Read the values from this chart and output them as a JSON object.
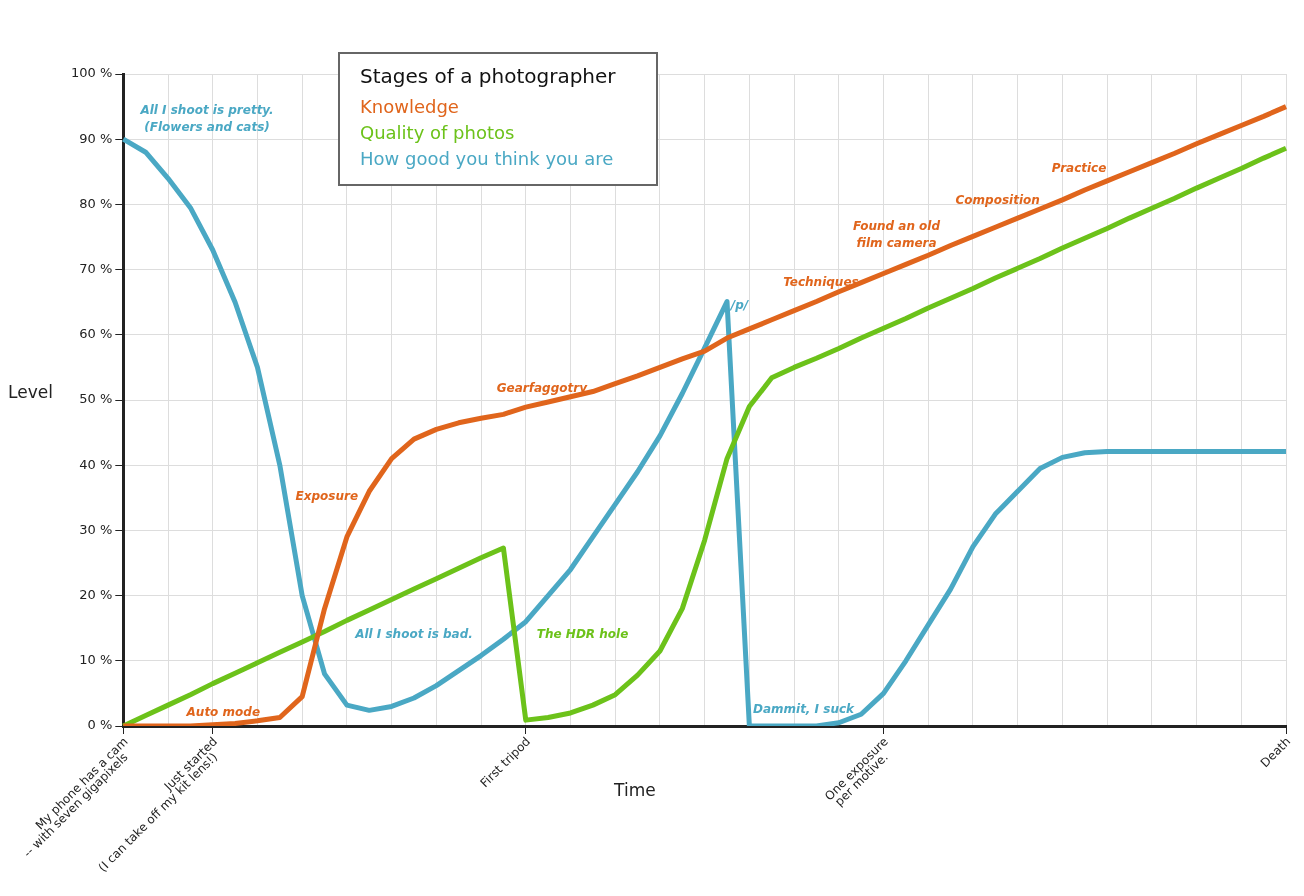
{
  "chart_data": {
    "type": "line",
    "xlabel": "Time",
    "ylabel": "Level",
    "legend_title": "Stages of a photographer",
    "legend": "top left",
    "grid": true,
    "marker": "none",
    "line_style": "solid",
    "ylim": [
      0,
      100
    ],
    "yticks": [
      {
        "value": 0,
        "label": "0 %"
      },
      {
        "value": 10,
        "label": "10 %"
      },
      {
        "value": 20,
        "label": "20 %"
      },
      {
        "value": 30,
        "label": "30 %"
      },
      {
        "value": 40,
        "label": "40 %"
      },
      {
        "value": 50,
        "label": "50 %"
      },
      {
        "value": 60,
        "label": "60 %"
      },
      {
        "value": 70,
        "label": "70 %"
      },
      {
        "value": 80,
        "label": "80 %"
      },
      {
        "value": 90,
        "label": "90 %"
      },
      {
        "value": 100,
        "label": "100 %"
      }
    ],
    "categories": [
      "My phone has a cam\n-- with seven gigapixels",
      null,
      null,
      null,
      "Just started\n(I can take off my kit lens!)",
      null,
      null,
      null,
      null,
      null,
      null,
      null,
      null,
      null,
      null,
      null,
      null,
      null,
      "First tripod",
      null,
      null,
      null,
      null,
      null,
      null,
      null,
      null,
      null,
      null,
      null,
      null,
      null,
      null,
      null,
      "One exposure\nper motive.",
      null,
      null,
      null,
      null,
      null,
      null,
      null,
      null,
      null,
      null,
      null,
      null,
      null,
      null,
      null,
      null,
      null,
      "Death"
    ],
    "series": [
      {
        "name": "Knowledge",
        "color": "#e0651c",
        "values": [
          0,
          0,
          0,
          0,
          0.2,
          0.4,
          0.8,
          1.3,
          4.5,
          18,
          29,
          36,
          41,
          44,
          45.5,
          46.5,
          47.2,
          47.8,
          48.9,
          49.7,
          50.5,
          51.3,
          52.5,
          53.7,
          55,
          56.3,
          57.5,
          59.5,
          60.9,
          62.3,
          63.7,
          65.1,
          66.6,
          68,
          69.4,
          70.8,
          72.2,
          73.7,
          75.1,
          76.5,
          77.9,
          79.3,
          80.7,
          82.2,
          83.6,
          85,
          86.4,
          87.8,
          89.3,
          90.7,
          92.1,
          93.5,
          95
        ]
      },
      {
        "name": "Quality of photos",
        "color": "#6cc21a",
        "values": [
          0,
          1.6,
          3.2,
          4.8,
          6.5,
          8.1,
          9.7,
          11.3,
          12.9,
          14.5,
          16.2,
          17.8,
          19.4,
          21,
          22.6,
          24.2,
          25.8,
          27.3,
          0.9,
          1.3,
          2,
          3.2,
          4.8,
          7.8,
          11.5,
          18,
          28.5,
          41,
          49,
          53.4,
          55,
          56.4,
          57.9,
          59.5,
          61,
          62.5,
          64.1,
          65.6,
          67.1,
          68.7,
          70.2,
          71.7,
          73.3,
          74.8,
          76.3,
          77.9,
          79.4,
          80.9,
          82.5,
          84,
          85.5,
          87.1,
          88.6
        ]
      },
      {
        "name": "How good you think you are",
        "color": "#4aa8c4",
        "values": [
          90,
          88,
          84,
          79.5,
          73,
          65,
          55,
          40,
          20,
          8,
          3.2,
          2.4,
          3,
          4.3,
          6.2,
          8.5,
          10.8,
          13.3,
          16,
          20,
          24,
          29,
          34,
          39,
          44.5,
          51,
          58,
          65.1,
          0,
          0,
          0,
          0,
          0.5,
          1.8,
          5,
          10,
          15.5,
          21,
          27.5,
          32.5,
          36,
          39.5,
          41.2,
          41.9,
          42.1,
          42.1,
          42.1,
          42.1,
          42.1,
          42.1,
          42.1,
          42.1,
          42.1
        ]
      }
    ],
    "annotations": [
      "All I shoot is pretty.\n(Flowers and cats)",
      "Auto mode",
      "Exposure",
      "Gearfaggotry",
      "All I shoot is bad.",
      "The HDR hole",
      "/p/",
      "Dammit, I suck",
      "Techniques",
      "Found an old\nfilm camera",
      "Composition",
      "Practice"
    ]
  }
}
